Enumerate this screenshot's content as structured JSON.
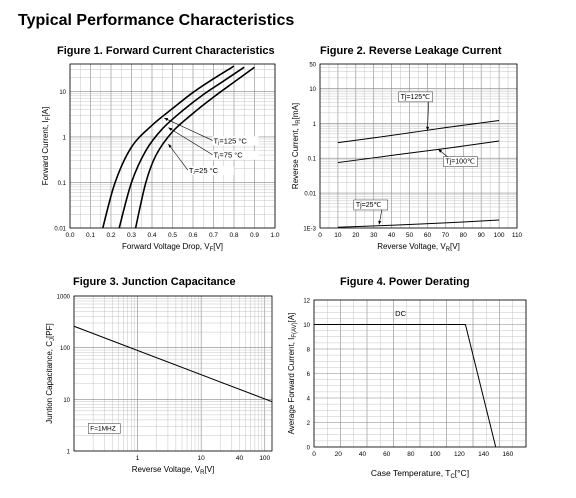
{
  "page": {
    "title": "Typical Performance Characteristics"
  },
  "chart_data": [
    {
      "id": "fig1",
      "type": "line",
      "title": "Figure 1. Forward Current Characteristics",
      "xlabel": "Forward Voltage Drop, V",
      "xlabel_sub": "F",
      "xlabel_unit": "[V]",
      "ylabel": "Forward Current, I",
      "ylabel_sub": "F",
      "ylabel_unit": "[A]",
      "x_scale": "linear",
      "y_scale": "log",
      "xlim": [
        0.0,
        1.0
      ],
      "ylim": [
        0.01,
        40
      ],
      "x_ticks": [
        "0.0",
        "0.1",
        "0.2",
        "0.3",
        "0.4",
        "0.5",
        "0.6",
        "0.7",
        "0.8",
        "0.9",
        "1.0"
      ],
      "y_ticks": [
        {
          "v": 0.01,
          "label": "0.01"
        },
        {
          "v": 0.1,
          "label": "0.1"
        },
        {
          "v": 1,
          "label": "1"
        },
        {
          "v": 10,
          "label": "10"
        }
      ],
      "grid": true,
      "series": [
        {
          "name": "Tⱼ=125 °C",
          "x": [
            0.16,
            0.22,
            0.3,
            0.4,
            0.5,
            0.6,
            0.7,
            0.8
          ],
          "y": [
            0.01,
            0.1,
            0.6,
            1.8,
            4.2,
            9.5,
            19,
            36
          ]
        },
        {
          "name": "Tⱼ=75 °C",
          "x": [
            0.24,
            0.3,
            0.37,
            0.45,
            0.55,
            0.65,
            0.75,
            0.85
          ],
          "y": [
            0.01,
            0.1,
            0.5,
            1.5,
            3.8,
            8.5,
            17,
            34
          ]
        },
        {
          "name": "Tⱼ=25 °C",
          "x": [
            0.32,
            0.37,
            0.42,
            0.5,
            0.6,
            0.7,
            0.8,
            0.9
          ],
          "y": [
            0.01,
            0.1,
            0.4,
            1.3,
            3.3,
            7.5,
            16,
            34
          ]
        }
      ],
      "annotations": [
        {
          "text": "Tⱼ=125 °C",
          "at": [
            0.7,
            0.72
          ]
        },
        {
          "text": "Tⱼ=75 °C",
          "at": [
            0.7,
            0.35
          ]
        },
        {
          "text": "Tⱼ=25 °C",
          "at": [
            0.58,
            0.16
          ]
        }
      ]
    },
    {
      "id": "fig2",
      "type": "line",
      "title": "Figure 2. Reverse Leakage Current",
      "xlabel": "Reverse Voltage, V",
      "xlabel_sub": "R",
      "xlabel_unit": "[V]",
      "ylabel": "Reverse Current, I",
      "ylabel_sub": "R",
      "ylabel_unit": "[mA]",
      "x_scale": "linear",
      "y_scale": "log",
      "xlim": [
        0,
        110
      ],
      "ylim": [
        0.001,
        50
      ],
      "x_ticks": [
        "0",
        "10",
        "20",
        "30",
        "40",
        "50",
        "60",
        "70",
        "80",
        "90",
        "100",
        "110"
      ],
      "y_ticks": [
        {
          "v": 0.001,
          "label": "1E-3"
        },
        {
          "v": 0.01,
          "label": "0.01"
        },
        {
          "v": 0.1,
          "label": "0.1"
        },
        {
          "v": 1,
          "label": "1"
        },
        {
          "v": 10,
          "label": "10"
        },
        {
          "v": 50,
          "label": "50"
        }
      ],
      "grid": true,
      "series": [
        {
          "name": "Tj=125℃",
          "x": [
            10,
            40,
            70,
            100
          ],
          "y": [
            0.28,
            0.45,
            0.75,
            1.2
          ]
        },
        {
          "name": "Tj=100℃",
          "x": [
            10,
            40,
            70,
            100
          ],
          "y": [
            0.075,
            0.12,
            0.19,
            0.31
          ]
        },
        {
          "name": "Tj=25℃",
          "x": [
            10,
            40,
            70,
            100
          ],
          "y": [
            0.00105,
            0.0012,
            0.0014,
            0.0017
          ]
        }
      ],
      "annotations": [
        {
          "text": "Tj=125℃",
          "at": [
            45,
            5
          ]
        },
        {
          "text": "Tj=100℃",
          "at": [
            70,
            0.07
          ]
        },
        {
          "text": "Tj=25℃",
          "at": [
            20,
            0.004
          ]
        }
      ]
    },
    {
      "id": "fig3",
      "type": "line",
      "title": "Figure 3. Junction Capacitance",
      "xlabel": "Reverse Voltage, V",
      "xlabel_sub": "R",
      "xlabel_unit": "[V]",
      "ylabel": "Juntion Capacitance, C",
      "ylabel_sub": "J",
      "ylabel_unit": "[PF]",
      "x_scale": "log",
      "y_scale": "log",
      "xlim": [
        0.1,
        130
      ],
      "ylim": [
        1,
        1000
      ],
      "x_ticks": [
        {
          "v": 1,
          "label": "1"
        },
        {
          "v": 10,
          "label": "10"
        },
        {
          "v": 40,
          "label": "40"
        },
        {
          "v": 100,
          "label": "100"
        }
      ],
      "y_ticks": [
        {
          "v": 1,
          "label": "1"
        },
        {
          "v": 10,
          "label": "10"
        },
        {
          "v": 100,
          "label": "100"
        },
        {
          "v": 1000,
          "label": "1000"
        }
      ],
      "grid": true,
      "series": [
        {
          "name": "",
          "x": [
            0.1,
            130
          ],
          "y": [
            260,
            9
          ]
        }
      ],
      "annotations": [
        {
          "text": "F=1MHZ",
          "at": [
            0.18,
            2.5
          ]
        }
      ]
    },
    {
      "id": "fig4",
      "type": "line",
      "title": "Figure 4. Power Derating",
      "xlabel": "Case Temperature, T",
      "xlabel_sub": "C",
      "xlabel_unit": "[°C]",
      "ylabel": "Average Forward Current, I",
      "ylabel_sub": "F(AV)",
      "ylabel_unit": "[A]",
      "x_scale": "linear",
      "y_scale": "linear",
      "xlim": [
        0,
        175
      ],
      "ylim": [
        0,
        12
      ],
      "x_ticks": [
        "0",
        "20",
        "40",
        "60",
        "80",
        "100",
        "120",
        "140",
        "160"
      ],
      "y_ticks": [
        "0",
        "2",
        "4",
        "6",
        "8",
        "10",
        "12"
      ],
      "grid": true,
      "series": [
        {
          "name": "DC",
          "x": [
            0,
            125,
            150
          ],
          "y": [
            10,
            10,
            0
          ]
        }
      ],
      "annotations": [
        {
          "text": "DC",
          "at": [
            67,
            10.7
          ]
        }
      ]
    }
  ]
}
